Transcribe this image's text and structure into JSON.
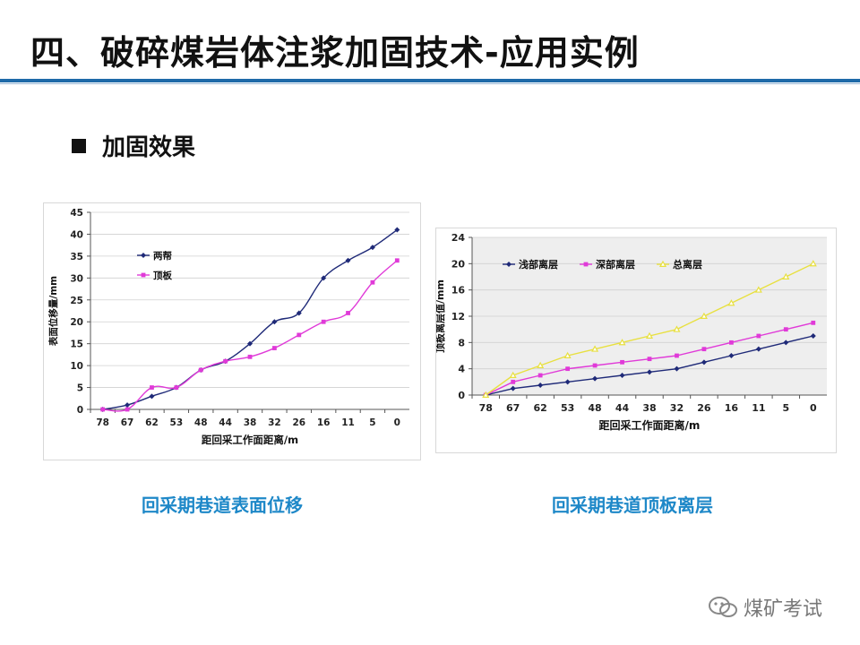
{
  "page": {
    "title": "四、破碎煤岩体注浆加固技术-应用实例",
    "section_label": "加固效果",
    "watermark": "煤矿考试",
    "colors": {
      "accent": "#1e6aa8",
      "caption": "#1e88c8"
    }
  },
  "chart_data": [
    {
      "type": "line",
      "caption": "回采期巷道表面位移",
      "xlabel": "距回采工作面距离/m",
      "ylabel": "表面位移量/mm",
      "categories": [
        "78",
        "67",
        "62",
        "53",
        "48",
        "44",
        "38",
        "32",
        "26",
        "16",
        "11",
        "5",
        "0"
      ],
      "ylim": [
        0,
        45
      ],
      "yticks": [
        0,
        5,
        10,
        15,
        20,
        25,
        30,
        35,
        40,
        45
      ],
      "legend_position": "top-left",
      "series": [
        {
          "name": "两帮",
          "color": "#1f2a78",
          "marker": "diamond",
          "smooth": true,
          "values": [
            0,
            1,
            3,
            5,
            9,
            11,
            15,
            20,
            22,
            30,
            34,
            37,
            41
          ]
        },
        {
          "name": "顶板",
          "color": "#e03ad8",
          "marker": "square",
          "smooth": true,
          "values": [
            0,
            0,
            5,
            5,
            9,
            11,
            12,
            14,
            17,
            20,
            22,
            29,
            34
          ]
        }
      ]
    },
    {
      "type": "line",
      "caption": "回采期巷道顶板离层",
      "xlabel": "距回采工作面距离/m",
      "ylabel": "顶板离层值/mm",
      "categories": [
        "78",
        "67",
        "62",
        "53",
        "48",
        "44",
        "38",
        "32",
        "26",
        "16",
        "11",
        "5",
        "0"
      ],
      "ylim": [
        0,
        24
      ],
      "yticks": [
        0,
        4,
        8,
        12,
        16,
        20,
        24
      ],
      "legend_position": "top",
      "series": [
        {
          "name": "浅部离层",
          "color": "#1f2a78",
          "marker": "diamond",
          "smooth": false,
          "values": [
            0,
            1,
            1.5,
            2,
            2.5,
            3,
            3.5,
            4,
            5,
            6,
            7,
            8,
            9
          ]
        },
        {
          "name": "深部离层",
          "color": "#e03ad8",
          "marker": "square",
          "smooth": false,
          "values": [
            0,
            2,
            3,
            4,
            4.5,
            5,
            5.5,
            6,
            7,
            8,
            9,
            10,
            11
          ]
        },
        {
          "name": "总离层",
          "color": "#e8e040",
          "marker": "triangle",
          "smooth": false,
          "values": [
            0,
            3,
            4.5,
            6,
            7,
            8,
            9,
            10,
            12,
            14,
            16,
            18,
            20
          ]
        }
      ]
    }
  ]
}
